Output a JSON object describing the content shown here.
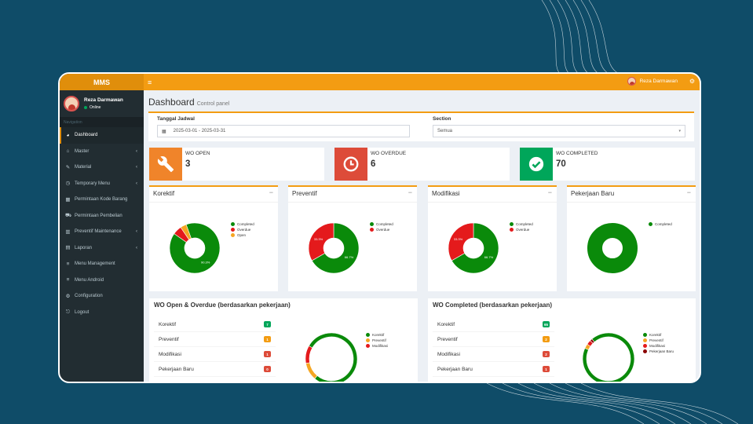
{
  "app": {
    "brand": "MMS"
  },
  "user": {
    "name": "Reza Darmawan",
    "status": "Online"
  },
  "nav": {
    "header": "Navigation",
    "items": [
      {
        "label": "Dashboard",
        "icon": "dashboard-icon"
      },
      {
        "label": "Master",
        "icon": "bank-icon"
      },
      {
        "label": "Material",
        "icon": "wrench-icon"
      },
      {
        "label": "Temporary Menu",
        "icon": "clock-icon"
      },
      {
        "label": "Permintaan Kode Barang",
        "icon": "table-icon"
      },
      {
        "label": "Permintaan Pembelian",
        "icon": "cart-icon"
      },
      {
        "label": "Preventif Maintenance",
        "icon": "bar-chart-icon"
      },
      {
        "label": "Laporan",
        "icon": "file-icon"
      },
      {
        "label": "Menu Management",
        "icon": "list-icon"
      },
      {
        "label": "Menu Android",
        "icon": "list-icon"
      },
      {
        "label": "Configuration",
        "icon": "gears-icon"
      },
      {
        "label": "Logout",
        "icon": "logout-icon"
      }
    ]
  },
  "page": {
    "title": "Dashboard",
    "subtitle": "Control panel"
  },
  "filters": {
    "date_label": "Tanggal Jadwal",
    "date_value": "2025-03-01 - 2025-03-31",
    "section_label": "Section",
    "section_value": "Semua"
  },
  "infoboxes": [
    {
      "label": "WO OPEN",
      "value": "3",
      "color": "#f0842a",
      "icon": "wrench-icon"
    },
    {
      "label": "WO OVERDUE",
      "value": "6",
      "color": "#dd4b39",
      "icon": "clock-icon"
    },
    {
      "label": "WO COMPLETED",
      "value": "70",
      "color": "#00a65a",
      "icon": "check-circle-icon"
    }
  ],
  "colors": {
    "completed": "#0a8a0a",
    "overdue": "#e41a1c",
    "open": "#f5a623",
    "dark_red": "#8b0000",
    "accent": "#f39c12"
  },
  "charts": [
    {
      "title": "Korektif",
      "legend": [
        "Completed",
        "Overdue",
        "Open"
      ],
      "slice_labels": [
        "90.3%"
      ]
    },
    {
      "title": "Preventif",
      "legend": [
        "Completed",
        "Overdue"
      ],
      "slice_labels": [
        "66.7%",
        "33.3%"
      ]
    },
    {
      "title": "Modifikasi",
      "legend": [
        "Completed",
        "Overdue"
      ],
      "slice_labels": [
        "66.7%",
        "33.3%"
      ]
    },
    {
      "title": "Pekerjaan Baru",
      "legend": [
        "Completed"
      ],
      "slice_labels": []
    }
  ],
  "wo_open": {
    "title": "WO Open & Overdue (berdasarkan pekerjaan)",
    "rows": [
      {
        "label": "Korektif",
        "value": "7"
      },
      {
        "label": "Preventif",
        "value": "1"
      },
      {
        "label": "Modifikasi",
        "value": "1"
      },
      {
        "label": "Pekerjaan Baru",
        "value": "0"
      }
    ],
    "legend": [
      "Korektif",
      "Preventif",
      "Modifikasi"
    ]
  },
  "wo_completed": {
    "title": "WO Completed (berdasarkan pekerjaan)",
    "rows": [
      {
        "label": "Korektif",
        "value": "65"
      },
      {
        "label": "Preventif",
        "value": "2"
      },
      {
        "label": "Modifikasi",
        "value": "2"
      },
      {
        "label": "Pekerjaan Baru",
        "value": "1"
      }
    ],
    "legend": [
      "Korektif",
      "Preventif",
      "Modifikasi",
      "Pekerjaan Baru"
    ]
  },
  "chart_data": [
    {
      "type": "pie",
      "title": "Korektif",
      "categories": [
        "Completed",
        "Overdue",
        "Open"
      ],
      "values": [
        90.3,
        5.8,
        3.9
      ]
    },
    {
      "type": "pie",
      "title": "Preventif",
      "categories": [
        "Completed",
        "Overdue"
      ],
      "values": [
        66.7,
        33.3
      ]
    },
    {
      "type": "pie",
      "title": "Modifikasi",
      "categories": [
        "Completed",
        "Overdue"
      ],
      "values": [
        66.7,
        33.3
      ]
    },
    {
      "type": "pie",
      "title": "Pekerjaan Baru",
      "categories": [
        "Completed"
      ],
      "values": [
        100
      ]
    },
    {
      "type": "pie",
      "title": "WO Open & Overdue (berdasarkan pekerjaan)",
      "categories": [
        "Korektif",
        "Preventif",
        "Modifikasi"
      ],
      "values": [
        7,
        1,
        1
      ]
    },
    {
      "type": "pie",
      "title": "WO Completed (berdasarkan pekerjaan)",
      "categories": [
        "Korektif",
        "Preventif",
        "Modifikasi",
        "Pekerjaan Baru"
      ],
      "values": [
        65,
        2,
        2,
        1
      ]
    }
  ]
}
